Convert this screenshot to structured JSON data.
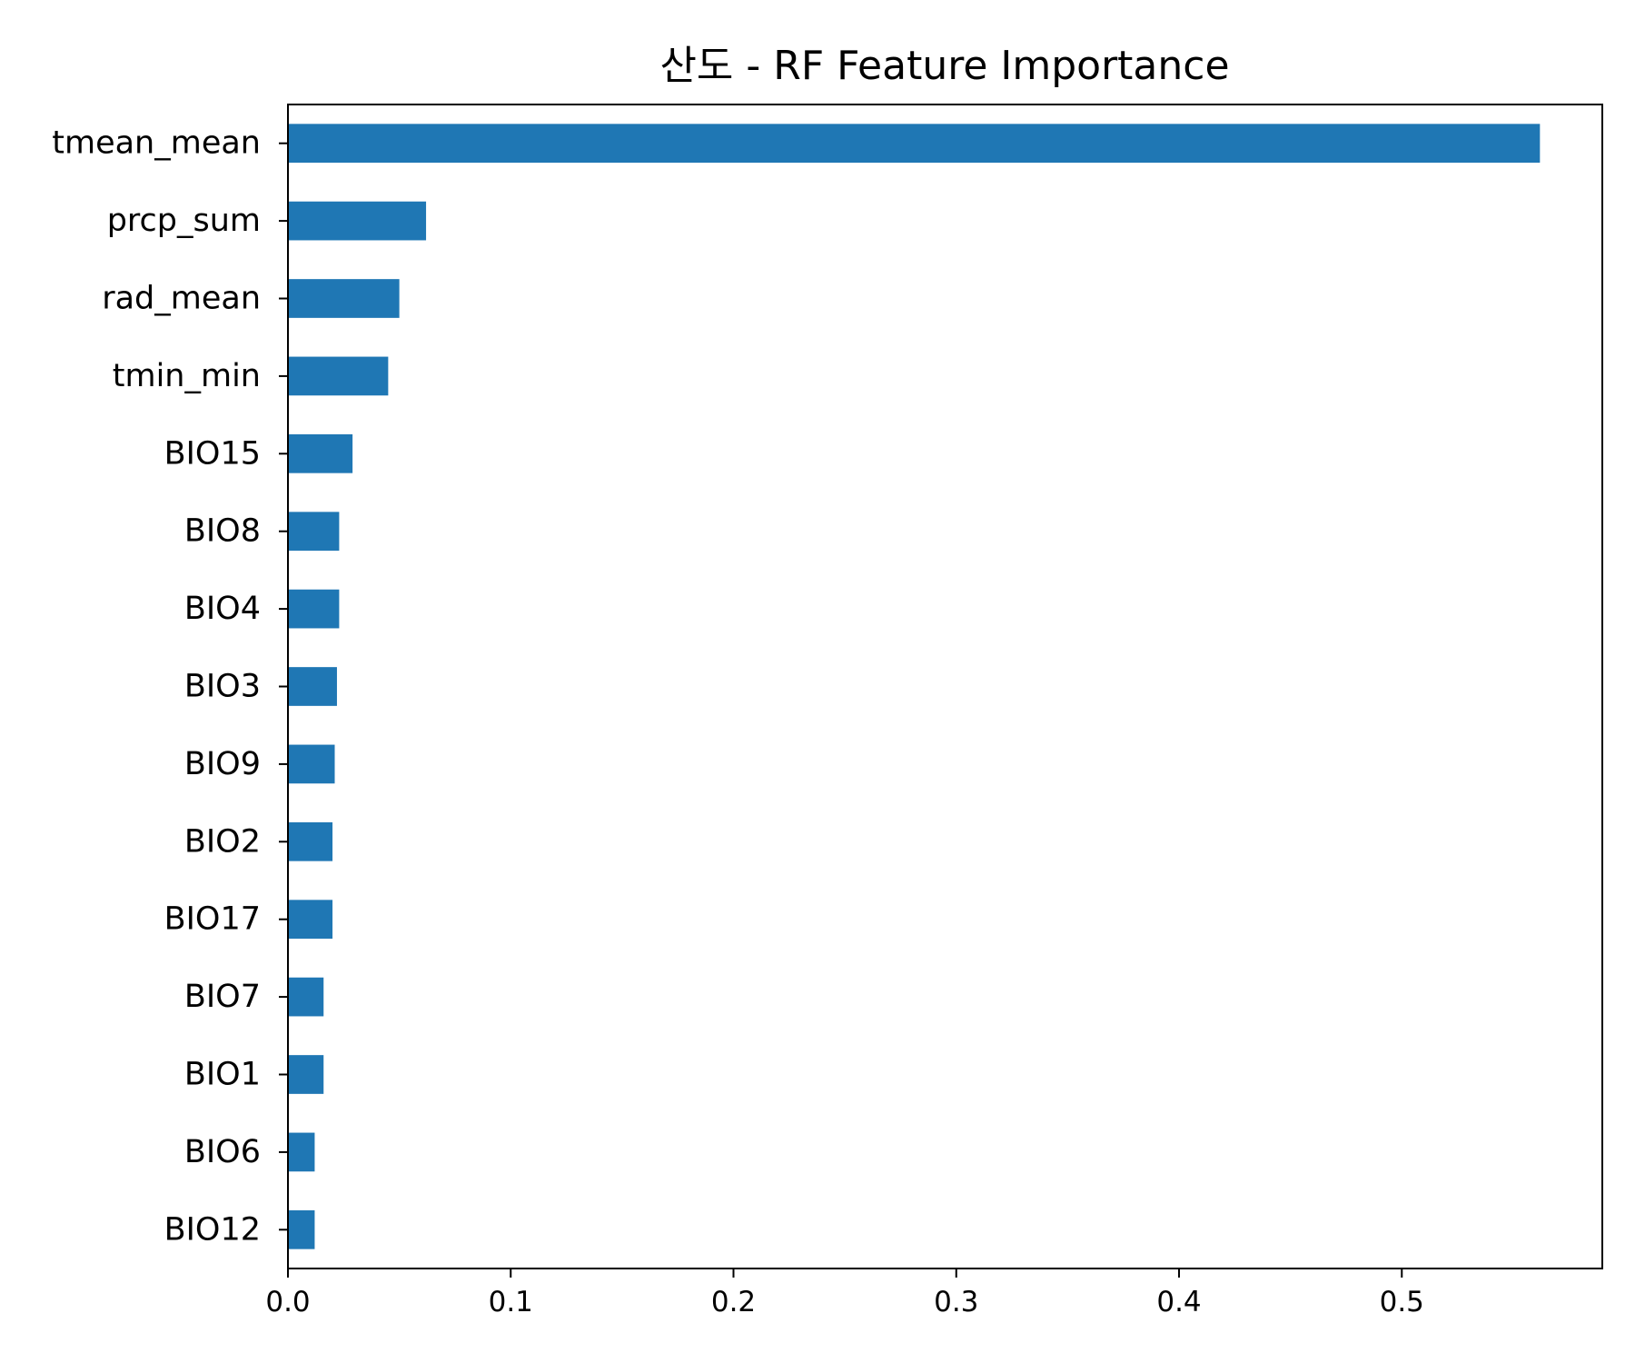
{
  "chart_data": {
    "type": "bar",
    "orientation": "horizontal",
    "title": "산도 - RF Feature Importance",
    "xlabel": "",
    "ylabel": "",
    "categories": [
      "tmean_mean",
      "prcp_sum",
      "rad_mean",
      "tmin_min",
      "BIO15",
      "BIO8",
      "BIO4",
      "BIO3",
      "BIO9",
      "BIO2",
      "BIO17",
      "BIO7",
      "BIO1",
      "BIO6",
      "BIO12"
    ],
    "values": [
      0.562,
      0.062,
      0.05,
      0.045,
      0.029,
      0.023,
      0.023,
      0.022,
      0.021,
      0.02,
      0.02,
      0.016,
      0.016,
      0.012,
      0.012
    ],
    "xlim": [
      0,
      0.59
    ],
    "xticks": [
      0.0,
      0.1,
      0.2,
      0.3,
      0.4,
      0.5
    ],
    "xtick_labels": [
      "0.0",
      "0.1",
      "0.2",
      "0.3",
      "0.4",
      "0.5"
    ],
    "grid": false,
    "bar_color": "#1f77b4",
    "legend": null
  }
}
